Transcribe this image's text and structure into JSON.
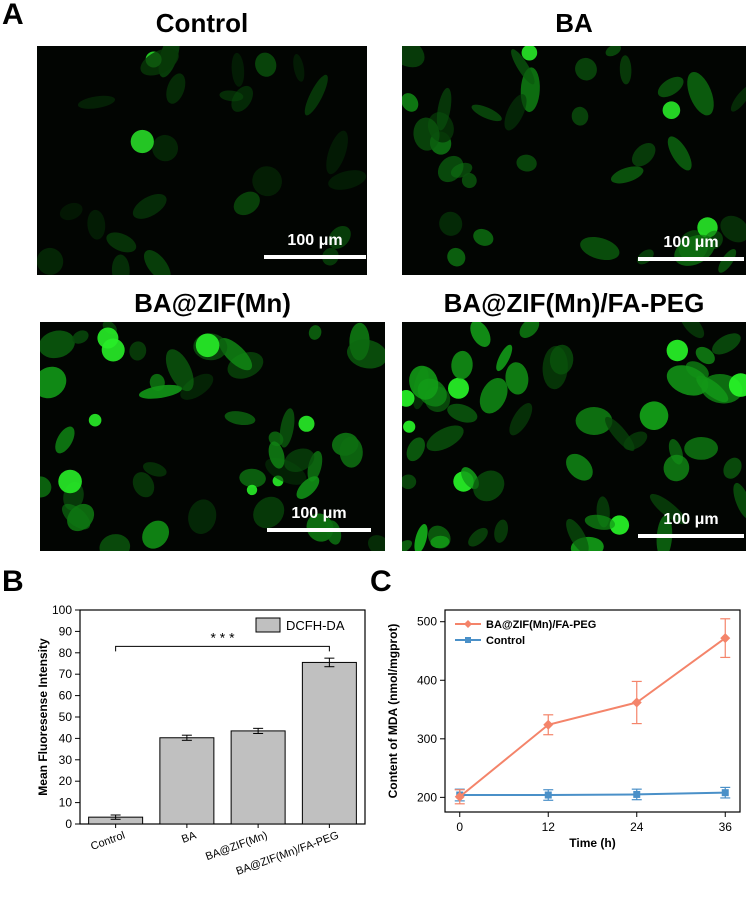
{
  "panel_a": {
    "letter": "A",
    "images": [
      {
        "title": "Control",
        "scale_label": "100 μm",
        "brightness": 0.35,
        "cells": 24
      },
      {
        "title": "BA",
        "scale_label": "100 μm",
        "brightness": 0.65,
        "cells": 34
      },
      {
        "title": "BA@ZIF(Mn)",
        "scale_label": "100 μm",
        "brightness": 0.75,
        "cells": 40
      },
      {
        "title": "BA@ZIF(Mn)/FA-PEG",
        "scale_label": "100 μm",
        "brightness": 0.95,
        "cells": 48
      }
    ]
  },
  "panel_b": {
    "letter": "B"
  },
  "panel_c": {
    "letter": "C"
  },
  "chart_data": [
    {
      "type": "bar",
      "categories": [
        "Control",
        "BA",
        "BA@ZIF(Mn)",
        "BA@ZIF(Mn)/FA-PEG"
      ],
      "series": [
        {
          "name": "DCFH-DA",
          "values": [
            3.2,
            40.3,
            43.5,
            75.5
          ],
          "errors": [
            1.0,
            1.2,
            1.2,
            2.0
          ]
        }
      ],
      "xlabel": "",
      "ylabel": "Mean Fluoresense Intensity",
      "ylim": [
        0,
        100
      ],
      "yticks": [
        "0",
        "10",
        "20",
        "30",
        "40",
        "50",
        "60",
        "70",
        "80",
        "90",
        "100"
      ],
      "annotation": "* * *",
      "legend": "top-right",
      "bar_color": "#c0c0c0"
    },
    {
      "type": "line",
      "x": [
        0,
        12,
        24,
        36
      ],
      "xticks": [
        "0",
        "12",
        "24",
        "36"
      ],
      "series": [
        {
          "name": "BA@ZIF(Mn)/FA-PEG",
          "values": [
            201,
            324,
            362,
            472
          ],
          "errors": [
            12,
            17,
            36,
            33
          ],
          "color": "#f4846a",
          "marker": "diamond"
        },
        {
          "name": "Control",
          "values": [
            204,
            204,
            205,
            208
          ],
          "errors": [
            10,
            9,
            9,
            9
          ],
          "color": "#4a90c8",
          "marker": "square"
        }
      ],
      "xlabel": "Time (h)",
      "ylabel": "Content of MDA (nmol/mgprot)",
      "xlim": [
        -2,
        38
      ],
      "ylim": [
        175,
        520
      ],
      "yticks": [
        "200",
        "300",
        "400",
        "500"
      ],
      "legend": "top-left"
    }
  ]
}
